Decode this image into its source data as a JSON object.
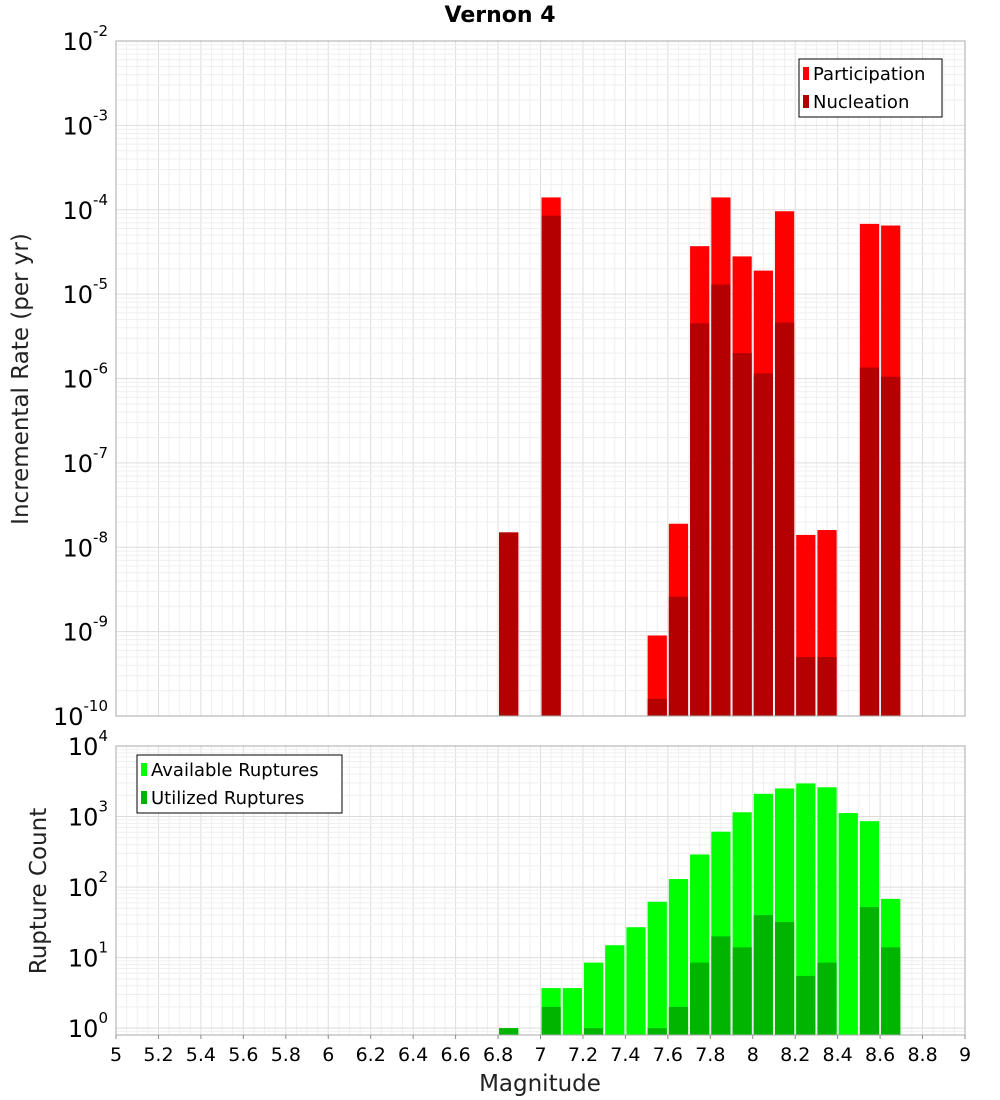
{
  "chart_data": [
    {
      "type": "bar",
      "title": "Vernon 4",
      "ylabel": "Incremental Rate (per yr)",
      "xlabel": "",
      "yscale": "log",
      "ylim": [
        1e-10,
        0.01
      ],
      "xlim": [
        5,
        9
      ],
      "bin_width": 0.1,
      "legend_position": "top-right",
      "yticks": [
        {
          "base": "10",
          "exp": "-2"
        },
        {
          "base": "10",
          "exp": "-3"
        },
        {
          "base": "10",
          "exp": "-4"
        },
        {
          "base": "10",
          "exp": "-5"
        },
        {
          "base": "10",
          "exp": "-6"
        },
        {
          "base": "10",
          "exp": "-7"
        },
        {
          "base": "10",
          "exp": "-8"
        },
        {
          "base": "10",
          "exp": "-9"
        },
        {
          "base": "10",
          "exp": "-10"
        }
      ],
      "series": [
        {
          "name": "Participation",
          "color": "#ff0000",
          "points": [
            {
              "x": 6.85,
              "y": 1.5e-08
            },
            {
              "x": 7.05,
              "y": 0.00014
            },
            {
              "x": 7.55,
              "y": 9e-10
            },
            {
              "x": 7.65,
              "y": 1.9e-08
            },
            {
              "x": 7.75,
              "y": 3.7e-05
            },
            {
              "x": 7.85,
              "y": 0.00014
            },
            {
              "x": 7.95,
              "y": 2.8e-05
            },
            {
              "x": 8.05,
              "y": 1.9e-05
            },
            {
              "x": 8.15,
              "y": 9.6e-05
            },
            {
              "x": 8.25,
              "y": 1.4e-08
            },
            {
              "x": 8.35,
              "y": 1.6e-08
            },
            {
              "x": 8.55,
              "y": 6.8e-05
            },
            {
              "x": 8.65,
              "y": 6.5e-05
            }
          ]
        },
        {
          "name": "Nucleation",
          "color": "#b40000",
          "points": [
            {
              "x": 6.85,
              "y": 1.5e-08
            },
            {
              "x": 7.05,
              "y": 8.5e-05
            },
            {
              "x": 7.55,
              "y": 1.6e-10
            },
            {
              "x": 7.65,
              "y": 2.6e-09
            },
            {
              "x": 7.75,
              "y": 4.5e-06
            },
            {
              "x": 7.85,
              "y": 1.3e-05
            },
            {
              "x": 7.95,
              "y": 2e-06
            },
            {
              "x": 8.05,
              "y": 1.15e-06
            },
            {
              "x": 8.15,
              "y": 4.6e-06
            },
            {
              "x": 8.25,
              "y": 5e-10
            },
            {
              "x": 8.35,
              "y": 5e-10
            },
            {
              "x": 8.55,
              "y": 1.35e-06
            },
            {
              "x": 8.65,
              "y": 1.05e-06
            }
          ]
        }
      ]
    },
    {
      "type": "bar",
      "title": "",
      "ylabel": "Rupture Count",
      "xlabel": "Magnitude",
      "yscale": "log",
      "ylim": [
        0.8,
        10000
      ],
      "xlim": [
        5,
        9
      ],
      "bin_width": 0.1,
      "legend_position": "top-left",
      "xticks": [
        "5",
        "5.2",
        "5.4",
        "5.6",
        "5.8",
        "6",
        "6.2",
        "6.4",
        "6.6",
        "6.8",
        "7",
        "7.2",
        "7.4",
        "7.6",
        "7.8",
        "8",
        "8.2",
        "8.4",
        "8.6",
        "8.8",
        "9"
      ],
      "yticks": [
        {
          "base": "10",
          "exp": "4"
        },
        {
          "base": "10",
          "exp": "3"
        },
        {
          "base": "10",
          "exp": "2"
        },
        {
          "base": "10",
          "exp": "1"
        },
        {
          "base": "10",
          "exp": "0"
        }
      ],
      "series": [
        {
          "name": "Available Ruptures",
          "color": "#00ff00",
          "points": [
            {
              "x": 6.85,
              "y": 1
            },
            {
              "x": 7.05,
              "y": 3.7
            },
            {
              "x": 7.15,
              "y": 3.7
            },
            {
              "x": 7.25,
              "y": 8.5
            },
            {
              "x": 7.35,
              "y": 15
            },
            {
              "x": 7.45,
              "y": 27
            },
            {
              "x": 7.55,
              "y": 62
            },
            {
              "x": 7.65,
              "y": 130
            },
            {
              "x": 7.75,
              "y": 290
            },
            {
              "x": 7.85,
              "y": 610
            },
            {
              "x": 7.95,
              "y": 1150
            },
            {
              "x": 8.05,
              "y": 2100
            },
            {
              "x": 8.15,
              "y": 2500
            },
            {
              "x": 8.25,
              "y": 2950
            },
            {
              "x": 8.35,
              "y": 2600
            },
            {
              "x": 8.45,
              "y": 1120
            },
            {
              "x": 8.55,
              "y": 860
            },
            {
              "x": 8.65,
              "y": 68
            }
          ]
        },
        {
          "name": "Utilized Ruptures",
          "color": "#00b400",
          "points": [
            {
              "x": 6.85,
              "y": 1
            },
            {
              "x": 7.05,
              "y": 2
            },
            {
              "x": 7.25,
              "y": 1
            },
            {
              "x": 7.55,
              "y": 1
            },
            {
              "x": 7.65,
              "y": 2
            },
            {
              "x": 7.75,
              "y": 8.5
            },
            {
              "x": 7.85,
              "y": 20
            },
            {
              "x": 7.95,
              "y": 14
            },
            {
              "x": 8.05,
              "y": 40
            },
            {
              "x": 8.15,
              "y": 32
            },
            {
              "x": 8.25,
              "y": 5.5
            },
            {
              "x": 8.35,
              "y": 8.5
            },
            {
              "x": 8.55,
              "y": 52
            },
            {
              "x": 8.65,
              "y": 14
            }
          ]
        }
      ]
    }
  ]
}
